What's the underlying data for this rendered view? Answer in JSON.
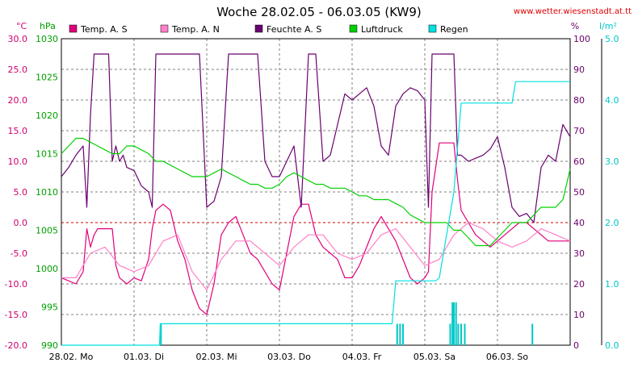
{
  "chart_data": {
    "type": "line",
    "title": "Woche 28.02.05 - 06.03.05 (KW9)",
    "source": "www.wetter.wiesenstadt.at.tt",
    "axes": {
      "temp": {
        "unit": "°C",
        "range": [
          -20,
          30
        ],
        "ticks": [
          "30.0",
          "25.0",
          "20.0",
          "15.0",
          "10.0",
          "5.0",
          "0.0",
          "-5.0",
          "-10.0",
          "-15.0",
          "-20.0"
        ],
        "color": "#d0006f"
      },
      "pressure": {
        "unit": "hPa",
        "range": [
          990,
          1030
        ],
        "ticks": [
          "1030",
          "1025",
          "1020",
          "1015",
          "1010",
          "1005",
          "1000",
          "995",
          "990"
        ],
        "color": "#00a000"
      },
      "humidity": {
        "unit": "%",
        "range": [
          0,
          100
        ],
        "ticks": [
          "100",
          "90",
          "80",
          "70",
          "60",
          "50",
          "40",
          "30",
          "20",
          "10",
          "0"
        ],
        "color": "#6a006a"
      },
      "rain": {
        "unit": "l/m²",
        "range": [
          0,
          5
        ],
        "ticks": [
          "5.0",
          "4.0",
          "3.0",
          "2.0",
          "1.0",
          "0.0"
        ],
        "color": "#00c8c8"
      }
    },
    "x_labels": [
      "28.02. Mo",
      "01.03. Di",
      "02.03. Mi",
      "03.03. Do",
      "04.03. Fr",
      "05.03. Sa",
      "06.03. So"
    ],
    "x_range_days": [
      0,
      7
    ],
    "grid": true,
    "zero_line_color": "#d00000",
    "legend": [
      {
        "label": "Temp. A. S",
        "color": "#e0007a"
      },
      {
        "label": "Temp. A. N",
        "color": "#ff80c8"
      },
      {
        "label": "Feuchte A. S",
        "color": "#6a0070"
      },
      {
        "label": "Luftdruck",
        "color": "#00d000"
      },
      {
        "label": "Regen",
        "color": "#00e0e0"
      }
    ],
    "series": [
      {
        "name": "Temp. A. S",
        "axis": "temp",
        "color": "#e0007a",
        "x": [
          0,
          0.1,
          0.2,
          0.3,
          0.35,
          0.4,
          0.45,
          0.5,
          0.55,
          0.7,
          0.75,
          0.8,
          0.85,
          0.9,
          1.0,
          1.1,
          1.2,
          1.25,
          1.3,
          1.4,
          1.5,
          1.6,
          1.7,
          1.8,
          1.9,
          2.0,
          2.1,
          2.2,
          2.3,
          2.4,
          2.5,
          2.6,
          2.7,
          2.8,
          2.9,
          3.0,
          3.1,
          3.2,
          3.3,
          3.4,
          3.5,
          3.6,
          3.7,
          3.8,
          3.9,
          4.0,
          4.1,
          4.2,
          4.3,
          4.4,
          4.5,
          4.6,
          4.7,
          4.8,
          4.9,
          5.0,
          5.05,
          5.1,
          5.2,
          5.3,
          5.4,
          5.45,
          5.5,
          5.6,
          5.7,
          5.8,
          5.9,
          6.0,
          6.1,
          6.2,
          6.3,
          6.4,
          6.5,
          6.6,
          6.7,
          6.8,
          6.9,
          7.0
        ],
        "y": [
          -9,
          -9.5,
          -10,
          -8,
          -1,
          -4,
          -2,
          -1,
          -1,
          -1,
          -7,
          -9,
          -9.5,
          -10,
          -9,
          -9.5,
          -6,
          -1,
          2,
          3,
          2,
          -3,
          -6,
          -11,
          -14,
          -15,
          -10,
          -2,
          0,
          1,
          -2,
          -5,
          -6,
          -8,
          -10,
          -11,
          -5,
          1,
          3,
          3,
          -2,
          -4,
          -5,
          -6,
          -9,
          -9,
          -7,
          -4,
          -1,
          1,
          -1,
          -3,
          -6,
          -9,
          -10,
          -9,
          -8,
          5,
          13,
          13,
          13,
          7,
          2,
          0,
          -2,
          -3,
          -4,
          -3,
          -2,
          -1,
          0,
          0,
          -1,
          -2,
          -3,
          -3,
          -3,
          -3
        ]
      },
      {
        "name": "Temp. A. N",
        "axis": "temp",
        "color": "#ff80c8",
        "x": [
          0,
          0.2,
          0.4,
          0.6,
          0.8,
          1.0,
          1.2,
          1.4,
          1.6,
          1.8,
          2.0,
          2.2,
          2.4,
          2.6,
          2.8,
          3.0,
          3.2,
          3.4,
          3.6,
          3.8,
          4.0,
          4.2,
          4.4,
          4.6,
          4.8,
          5.0,
          5.2,
          5.4,
          5.6,
          5.8,
          6.0,
          6.2,
          6.4,
          6.6,
          6.8,
          7.0
        ],
        "y": [
          -9,
          -9,
          -5,
          -4,
          -7,
          -8,
          -7,
          -3,
          -2,
          -8,
          -11,
          -6,
          -3,
          -3,
          -5,
          -7,
          -4,
          -2,
          -2,
          -5,
          -6,
          -5,
          -2,
          -1,
          -4,
          -7,
          -6,
          -2,
          0,
          -1,
          -3,
          -4,
          -3,
          -1,
          -2,
          -3
        ]
      },
      {
        "name": "Feuchte A. S",
        "axis": "humidity",
        "color": "#6a0070",
        "x": [
          0,
          0.1,
          0.2,
          0.3,
          0.35,
          0.4,
          0.45,
          0.5,
          0.55,
          0.65,
          0.7,
          0.75,
          0.8,
          0.85,
          0.9,
          1.0,
          1.1,
          1.2,
          1.25,
          1.3,
          1.4,
          1.5,
          1.6,
          1.7,
          1.8,
          1.9,
          2.0,
          2.1,
          2.2,
          2.3,
          2.4,
          2.5,
          2.6,
          2.7,
          2.8,
          2.9,
          3.0,
          3.1,
          3.2,
          3.3,
          3.4,
          3.5,
          3.6,
          3.7,
          3.8,
          3.9,
          4.0,
          4.1,
          4.2,
          4.3,
          4.4,
          4.5,
          4.6,
          4.7,
          4.8,
          4.9,
          5.0,
          5.05,
          5.1,
          5.2,
          5.3,
          5.4,
          5.45,
          5.5,
          5.6,
          5.7,
          5.8,
          5.9,
          6.0,
          6.1,
          6.2,
          6.3,
          6.4,
          6.5,
          6.6,
          6.7,
          6.8,
          6.9,
          7.0
        ],
        "y": [
          55,
          58,
          62,
          65,
          45,
          75,
          95,
          95,
          95,
          95,
          60,
          65,
          60,
          62,
          58,
          57,
          52,
          50,
          45,
          95,
          95,
          95,
          95,
          95,
          95,
          95,
          45,
          47,
          55,
          95,
          95,
          95,
          95,
          95,
          60,
          55,
          55,
          60,
          65,
          45,
          95,
          95,
          60,
          62,
          72,
          82,
          80,
          82,
          84,
          78,
          65,
          62,
          78,
          82,
          84,
          83,
          80,
          45,
          95,
          95,
          95,
          95,
          62,
          62,
          60,
          61,
          62,
          64,
          68,
          58,
          45,
          42,
          43,
          40,
          58,
          62,
          60,
          72,
          68
        ]
      },
      {
        "name": "Luftdruck",
        "axis": "pressure",
        "color": "#00d000",
        "x": [
          0,
          0.1,
          0.2,
          0.3,
          0.4,
          0.5,
          0.6,
          0.7,
          0.8,
          0.9,
          1.0,
          1.1,
          1.2,
          1.3,
          1.4,
          1.5,
          1.6,
          1.7,
          1.8,
          1.9,
          2.0,
          2.1,
          2.2,
          2.3,
          2.4,
          2.5,
          2.6,
          2.7,
          2.8,
          2.9,
          3.0,
          3.1,
          3.2,
          3.3,
          3.4,
          3.5,
          3.6,
          3.7,
          3.8,
          3.9,
          4.0,
          4.1,
          4.2,
          4.3,
          4.4,
          4.5,
          4.6,
          4.7,
          4.8,
          4.9,
          5.0,
          5.1,
          5.2,
          5.3,
          5.4,
          5.5,
          5.6,
          5.7,
          5.8,
          5.9,
          6.0,
          6.1,
          6.2,
          6.3,
          6.4,
          6.5,
          6.6,
          6.7,
          6.8,
          6.9,
          7.0
        ],
        "y": [
          1015,
          1016,
          1017,
          1017,
          1016.5,
          1016,
          1015.5,
          1015,
          1015,
          1016,
          1016,
          1015.5,
          1015,
          1014,
          1014,
          1013.5,
          1013,
          1012.5,
          1012,
          1012,
          1012,
          1012.5,
          1013,
          1012.5,
          1012,
          1011.5,
          1011,
          1011,
          1010.5,
          1010.5,
          1011,
          1012,
          1012.5,
          1012,
          1011.5,
          1011,
          1011,
          1010.5,
          1010.5,
          1010.5,
          1010,
          1009.5,
          1009.5,
          1009,
          1009,
          1009,
          1008.5,
          1008,
          1007,
          1006.5,
          1006,
          1006,
          1006,
          1006,
          1005,
          1005,
          1004,
          1003,
          1003,
          1003,
          1004,
          1005,
          1006,
          1006,
          1006,
          1007,
          1008,
          1008,
          1008,
          1009,
          1013
        ]
      },
      {
        "name": "Regen",
        "axis": "rain",
        "color": "#00e0e0",
        "x": [
          0,
          1.35,
          1.36,
          1.4,
          2.0,
          3.0,
          4.0,
          4.55,
          4.6,
          5.0,
          5.1,
          5.15,
          5.2,
          5.3,
          5.4,
          5.5,
          5.6,
          5.8,
          6.0,
          6.2,
          6.25,
          6.5,
          6.8,
          7.0
        ],
        "y": [
          0,
          0,
          0.35,
          0.35,
          0.35,
          0.35,
          0.35,
          0.35,
          1.05,
          1.05,
          1.05,
          1.05,
          1.1,
          1.8,
          2.5,
          3.95,
          3.95,
          3.95,
          3.95,
          3.95,
          4.3,
          4.3,
          4.3,
          4.3
        ]
      }
    ],
    "rain_bars": {
      "x": [
        1.37,
        4.62,
        4.66,
        4.7,
        5.35,
        5.38,
        5.4,
        5.43,
        5.46,
        5.5,
        5.55,
        6.48
      ],
      "y": [
        0.35,
        0.35,
        0.35,
        0.35,
        0.35,
        0.7,
        0.7,
        0.7,
        0.35,
        0.35,
        0.35,
        0.35
      ]
    }
  }
}
